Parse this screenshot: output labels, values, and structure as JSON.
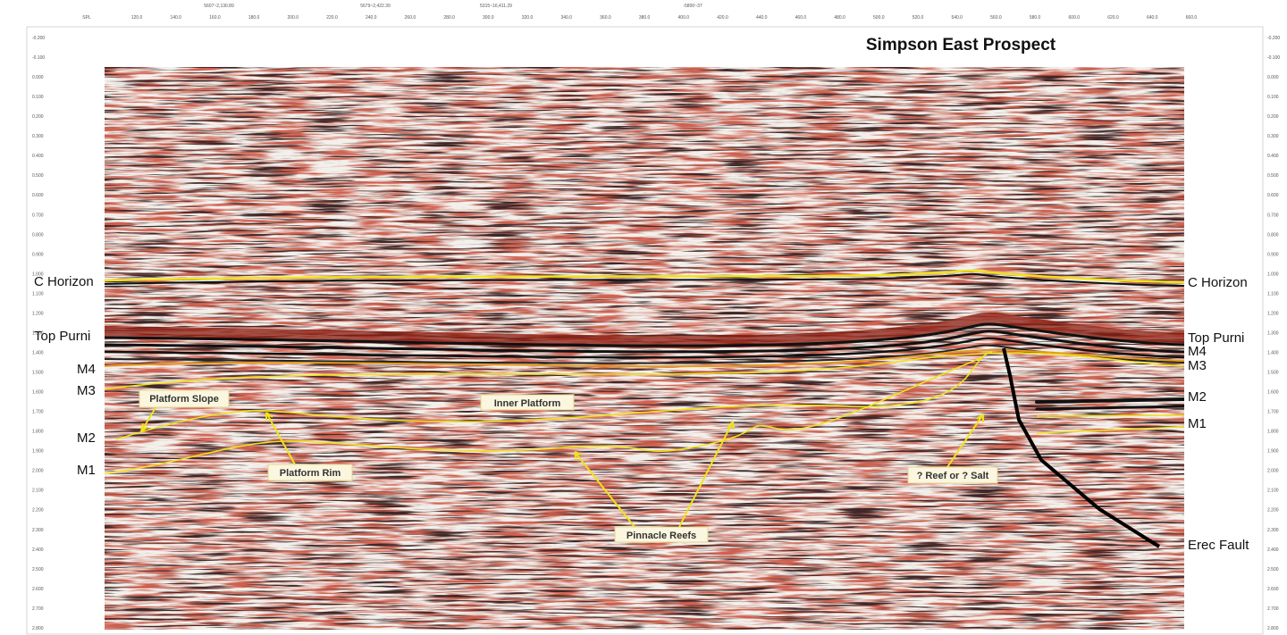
{
  "title": "Simpson East Prospect",
  "top_header": [
    "5607~2,130.89",
    "5679~2,422.30",
    "5315~16,411.29",
    "-5800~37"
  ],
  "top_axis": [
    "SPL",
    "120.0",
    "140.0",
    "160.0",
    "180.0",
    "200.0",
    "220.0",
    "240.0",
    "260.0",
    "280.0",
    "300.0",
    "320.0",
    "340.0",
    "360.0",
    "380.0",
    "400.0",
    "420.0",
    "440.0",
    "460.0",
    "480.0",
    "500.0",
    "520.0",
    "540.0",
    "560.0",
    "580.0",
    "600.0",
    "620.0",
    "640.0",
    "660.0"
  ],
  "time_axis": [
    "-0.200",
    "-0.100",
    "0.000",
    "0.100",
    "0.200",
    "0.300",
    "0.400",
    "0.500",
    "0.600",
    "0.700",
    "0.800",
    "0.900",
    "1.000",
    "1.100",
    "1.200",
    "1.300",
    "1.400",
    "1.500",
    "1.600",
    "1.700",
    "1.800",
    "1.900",
    "2.000",
    "2.100",
    "2.200",
    "2.300",
    "2.400",
    "2.500",
    "2.600",
    "2.700",
    "2.800"
  ],
  "horizons_left": [
    "C Horizon",
    "Top Purni",
    "M4",
    "M3",
    "M2",
    "M1"
  ],
  "horizons_right": [
    "C Horizon",
    "Top Purni",
    "M4",
    "M3",
    "M2",
    "M1",
    "Erec Fault"
  ],
  "annotations": [
    "Platform Slope",
    "Inner Platform",
    "Platform Rim",
    "Pinnacle Reefs",
    "? Reef or ? Salt"
  ]
}
